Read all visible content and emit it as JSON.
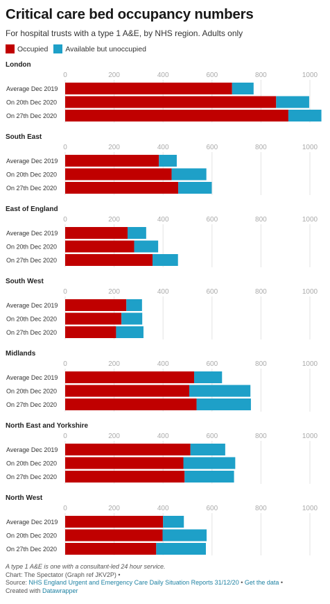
{
  "title": "Critical care bed occupancy numbers",
  "subtitle": "For hospital trusts with a type 1 A&E, by NHS region. Adults only",
  "legend": [
    {
      "label": "Occupied",
      "color": "#c00000"
    },
    {
      "label": "Available but unoccupied",
      "color": "#1ea0c8"
    }
  ],
  "footer": {
    "note": "A type 1 A&E is one with a consultant-led 24 hour service.",
    "chart_credit": "Chart: The Spectator (Graph ref JKV2P) •",
    "source_prefix": "Source: ",
    "source_link": "NHS England Urgent and Emergency Care Daily Situation Reports 31/12/20",
    "separator": " • ",
    "get_data": "Get the data",
    "trailing_bullet": " •",
    "created_prefix": "Created with ",
    "created_link": "Datawrapper"
  },
  "chart_data": {
    "type": "bar",
    "orientation": "horizontal",
    "stacked": true,
    "xlim": [
      0,
      1000
    ],
    "ticks": [
      0,
      200,
      400,
      600,
      800,
      1000
    ],
    "series_colors": [
      "#c00000",
      "#1ea0c8"
    ],
    "grid": true,
    "panels": [
      {
        "region": "London",
        "rows": [
          {
            "label": "Average Dec 2019",
            "occupied": 682,
            "unoccupied": 88
          },
          {
            "label": "On 20th Dec 2020",
            "occupied": 862,
            "unoccupied": 135
          },
          {
            "label": "On 27th Dec 2020",
            "occupied": 912,
            "unoccupied": 135
          }
        ]
      },
      {
        "region": "South East",
        "rows": [
          {
            "label": "Average Dec 2019",
            "occupied": 383,
            "unoccupied": 73
          },
          {
            "label": "On 20th Dec 2020",
            "occupied": 435,
            "unoccupied": 142
          },
          {
            "label": "On 27th Dec 2020",
            "occupied": 462,
            "unoccupied": 137
          }
        ]
      },
      {
        "region": "East of England",
        "rows": [
          {
            "label": "Average Dec 2019",
            "occupied": 255,
            "unoccupied": 76
          },
          {
            "label": "On 20th Dec 2020",
            "occupied": 282,
            "unoccupied": 98
          },
          {
            "label": "On 27th Dec 2020",
            "occupied": 357,
            "unoccupied": 104
          }
        ]
      },
      {
        "region": "South West",
        "rows": [
          {
            "label": "Average Dec 2019",
            "occupied": 250,
            "unoccupied": 64
          },
          {
            "label": "On 20th Dec 2020",
            "occupied": 230,
            "unoccupied": 85
          },
          {
            "label": "On 27th Dec 2020",
            "occupied": 208,
            "unoccupied": 112
          }
        ]
      },
      {
        "region": "Midlands",
        "rows": [
          {
            "label": "Average Dec 2019",
            "occupied": 527,
            "unoccupied": 114
          },
          {
            "label": "On 20th Dec 2020",
            "occupied": 507,
            "unoccupied": 250
          },
          {
            "label": "On 27th Dec 2020",
            "occupied": 537,
            "unoccupied": 222
          }
        ]
      },
      {
        "region": "North East and Yorkshire",
        "rows": [
          {
            "label": "Average Dec 2019",
            "occupied": 512,
            "unoccupied": 142
          },
          {
            "label": "On 20th Dec 2020",
            "occupied": 483,
            "unoccupied": 212
          },
          {
            "label": "On 27th Dec 2020",
            "occupied": 488,
            "unoccupied": 202
          }
        ]
      },
      {
        "region": "North West",
        "rows": [
          {
            "label": "Average Dec 2019",
            "occupied": 400,
            "unoccupied": 85
          },
          {
            "label": "On 20th Dec 2020",
            "occupied": 398,
            "unoccupied": 180
          },
          {
            "label": "On 27th Dec 2020",
            "occupied": 372,
            "unoccupied": 203
          }
        ]
      }
    ]
  }
}
